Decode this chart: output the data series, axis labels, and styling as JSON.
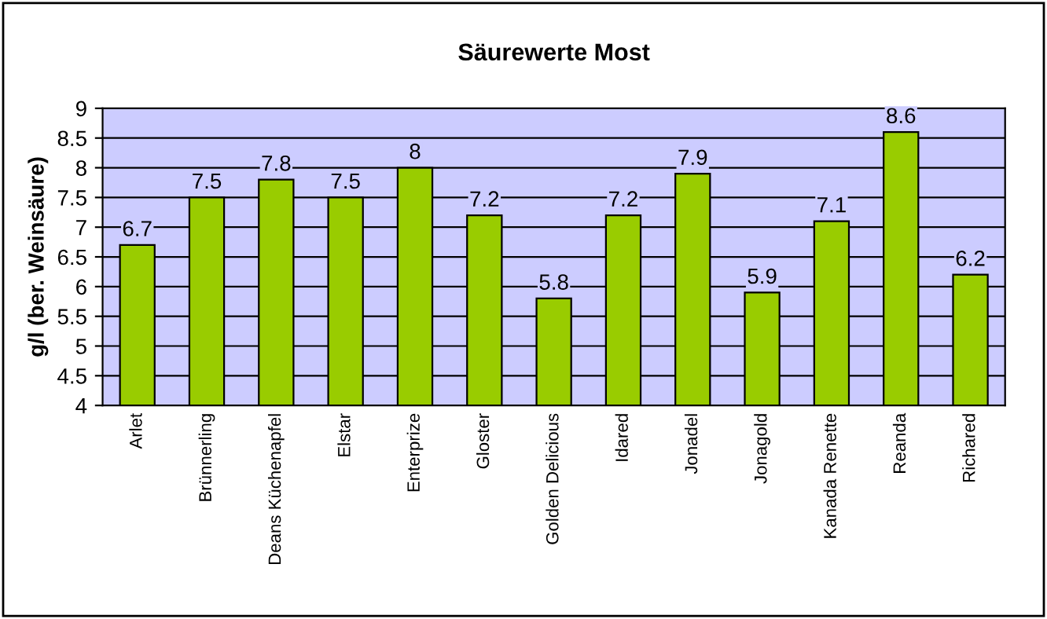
{
  "chart_data": {
    "type": "bar",
    "title": "Säurewerte Most",
    "ylabel": "g/l (ber. Weinsäure)",
    "categories": [
      "Arlet",
      "Brünnerling",
      "Deans Küchenapfel",
      "Elstar",
      "Enterprize",
      "Gloster",
      "Golden Delicious",
      "Idared",
      "Jonadel",
      "Jonagold",
      "Kanada Renette",
      "Reanda",
      "Richared"
    ],
    "values": [
      6.7,
      7.5,
      7.8,
      7.5,
      8,
      7.2,
      5.8,
      7.2,
      7.9,
      5.9,
      7.1,
      8.6,
      6.2
    ],
    "color": "#99cc00",
    "ylim": [
      4,
      9
    ],
    "yticks": [
      4,
      4.5,
      5,
      5.5,
      6,
      6.5,
      7,
      7.5,
      8,
      8.5,
      9
    ],
    "grid": "y",
    "data_labels": true,
    "legend": false
  }
}
